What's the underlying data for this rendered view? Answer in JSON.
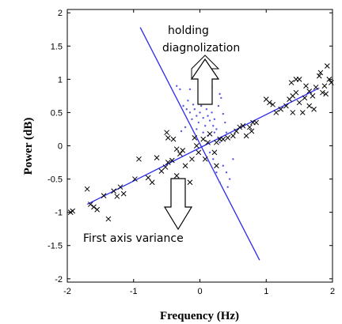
{
  "chart_data": {
    "type": "scatter",
    "xlabel": "Frequency (Hz)",
    "ylabel": "Power (dB)",
    "xlim": [
      -2,
      2
    ],
    "ylim": [
      -2.05,
      2.05
    ],
    "x_ticks": [
      -2,
      -1,
      0,
      1,
      2
    ],
    "x_tick_labels": [
      "-2",
      "-1",
      "0",
      "1",
      "2"
    ],
    "y_ticks": [
      2,
      1.5,
      1,
      0.5,
      0,
      -0.5,
      -1,
      -1.5,
      -2
    ],
    "y_tick_labels": [
      "2",
      "1.5",
      "1",
      "0.5",
      "0",
      "-0.5",
      "-1",
      "-1.5",
      "-2"
    ],
    "grid": false,
    "annotations": [
      {
        "text": "holding",
        "direction": "up"
      },
      {
        "text": "diagnolization",
        "direction": "up"
      },
      {
        "text": "First axis variance",
        "direction": "down"
      }
    ],
    "lines": [
      {
        "x": [
          -1.7,
          1.8
        ],
        "y": [
          -0.88,
          0.87
        ],
        "color": "#2a2af0"
      },
      {
        "x": [
          -0.9,
          0.9
        ],
        "y": [
          1.78,
          -1.72
        ],
        "color": "#2a2af0"
      }
    ],
    "crosses": {
      "color": "#000000",
      "points": [
        [
          -1.95,
          -1.0
        ],
        [
          -1.92,
          -0.98
        ],
        [
          -1.7,
          -0.65
        ],
        [
          -1.65,
          -0.88
        ],
        [
          -1.6,
          -0.92
        ],
        [
          -1.55,
          -0.96
        ],
        [
          -1.45,
          -0.75
        ],
        [
          -1.38,
          -1.1
        ],
        [
          -1.3,
          -0.68
        ],
        [
          -1.25,
          -0.76
        ],
        [
          -1.2,
          -0.62
        ],
        [
          -1.15,
          -0.72
        ],
        [
          -0.98,
          -0.5
        ],
        [
          -0.92,
          -0.2
        ],
        [
          -0.78,
          -0.48
        ],
        [
          -0.72,
          -0.55
        ],
        [
          -0.65,
          -0.18
        ],
        [
          -0.58,
          -0.38
        ],
        [
          -0.52,
          -0.32
        ],
        [
          -0.48,
          -0.25
        ],
        [
          -0.42,
          -0.22
        ],
        [
          -0.38,
          -0.58
        ],
        [
          -0.35,
          -0.45
        ],
        [
          -0.3,
          -0.12
        ],
        [
          -0.26,
          -0.07
        ],
        [
          -0.22,
          -0.3
        ],
        [
          -0.15,
          -0.55
        ],
        [
          -0.12,
          -0.2
        ],
        [
          -0.08,
          0.12
        ],
        [
          -0.05,
          0.0
        ],
        [
          -0.02,
          -0.1
        ],
        [
          0.05,
          0.1
        ],
        [
          0.08,
          -0.2
        ],
        [
          0.12,
          0.05
        ],
        [
          0.15,
          0.18
        ],
        [
          0.22,
          -0.1
        ],
        [
          0.25,
          -0.3
        ],
        [
          0.3,
          0.1
        ],
        [
          0.35,
          0.1
        ],
        [
          0.42,
          0.12
        ],
        [
          0.5,
          0.15
        ],
        [
          0.55,
          0.22
        ],
        [
          0.6,
          0.28
        ],
        [
          0.65,
          0.3
        ],
        [
          0.7,
          0.15
        ],
        [
          0.75,
          0.28
        ],
        [
          0.78,
          0.22
        ],
        [
          0.8,
          0.35
        ],
        [
          0.85,
          0.35
        ],
        [
          -0.5,
          0.2
        ],
        [
          -0.48,
          0.12
        ],
        [
          -0.4,
          0.1
        ],
        [
          -0.35,
          -0.05
        ],
        [
          0.25,
          0.05
        ],
        [
          1.0,
          0.7
        ],
        [
          1.05,
          0.65
        ],
        [
          1.1,
          0.62
        ],
        [
          1.15,
          0.5
        ],
        [
          1.22,
          0.55
        ],
        [
          1.3,
          0.6
        ],
        [
          1.35,
          0.7
        ],
        [
          1.4,
          0.75
        ],
        [
          1.45,
          0.8
        ],
        [
          1.5,
          0.65
        ],
        [
          1.55,
          0.5
        ],
        [
          1.58,
          0.72
        ],
        [
          1.65,
          0.82
        ],
        [
          1.7,
          0.75
        ],
        [
          1.72,
          0.55
        ],
        [
          1.75,
          0.88
        ],
        [
          1.8,
          1.05
        ],
        [
          1.82,
          1.1
        ],
        [
          1.85,
          0.8
        ],
        [
          1.88,
          0.9
        ],
        [
          1.9,
          0.78
        ],
        [
          1.92,
          1.2
        ],
        [
          1.95,
          1.0
        ],
        [
          1.65,
          0.6
        ],
        [
          1.45,
          1.0
        ],
        [
          1.5,
          1.0
        ],
        [
          1.4,
          0.5
        ],
        [
          1.38,
          0.95
        ],
        [
          1.6,
          0.9
        ],
        [
          1.98,
          0.95
        ]
      ]
    },
    "dots": {
      "color": "#5a5ae0",
      "points": [
        [
          -0.35,
          0.9
        ],
        [
          -0.3,
          0.85
        ],
        [
          -0.25,
          0.6
        ],
        [
          -0.2,
          0.55
        ],
        [
          -0.18,
          0.68
        ],
        [
          -0.15,
          0.5
        ],
        [
          -0.12,
          0.4
        ],
        [
          -0.1,
          0.62
        ],
        [
          -0.08,
          0.55
        ],
        [
          -0.05,
          0.45
        ],
        [
          -0.02,
          0.35
        ],
        [
          0.0,
          0.5
        ],
        [
          0.02,
          0.6
        ],
        [
          0.05,
          0.42
        ],
        [
          0.08,
          0.3
        ],
        [
          0.1,
          0.55
        ],
        [
          0.12,
          0.45
        ],
        [
          0.15,
          0.38
        ],
        [
          0.18,
          0.5
        ],
        [
          0.2,
          0.3
        ],
        [
          0.22,
          0.4
        ],
        [
          0.25,
          0.25
        ],
        [
          0.28,
          0.6
        ],
        [
          0.3,
          0.78
        ],
        [
          0.32,
          0.72
        ],
        [
          0.35,
          0.48
        ],
        [
          0.38,
          0.35
        ],
        [
          0.4,
          0.2
        ],
        [
          -0.22,
          0.28
        ],
        [
          -0.28,
          0.22
        ],
        [
          0.1,
          0.8
        ],
        [
          0.18,
          0.88
        ],
        [
          0.3,
          0.05
        ],
        [
          0.35,
          -0.3
        ],
        [
          0.4,
          -0.4
        ],
        [
          0.45,
          -0.5
        ],
        [
          0.42,
          -0.62
        ],
        [
          0.3,
          -0.55
        ],
        [
          0.25,
          -0.4
        ],
        [
          0.2,
          -0.2
        ],
        [
          0.15,
          -0.1
        ],
        [
          0.5,
          -0.2
        ],
        [
          0.12,
          0.15
        ],
        [
          0.05,
          0.2
        ],
        [
          -0.05,
          0.25
        ],
        [
          0.08,
          0.65
        ],
        [
          -0.15,
          0.85
        ],
        [
          0.0,
          0.7
        ],
        [
          0.22,
          0.2
        ],
        [
          0.28,
          0.1
        ]
      ]
    }
  }
}
